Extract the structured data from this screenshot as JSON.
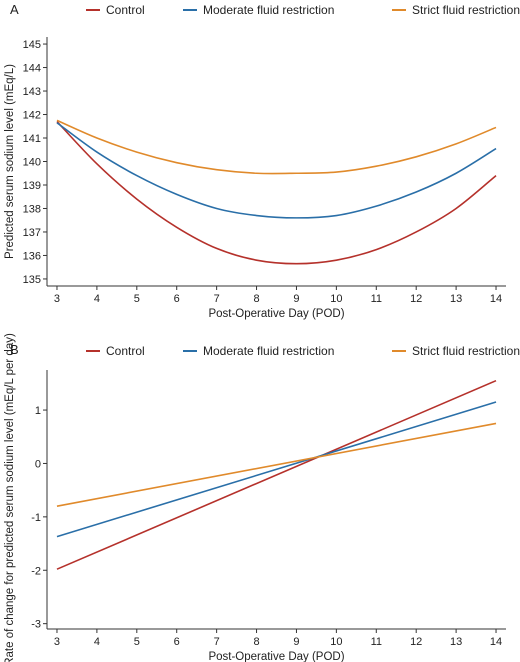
{
  "colors": {
    "control": "#b5312b",
    "moderate": "#2a6fa8",
    "strict": "#e08a2b",
    "axis": "#333333"
  },
  "chart_data": [
    {
      "type": "line",
      "panel_label": "A",
      "xlabel": "Post-Operative Day (POD)",
      "ylabel": "Predicted serum sodium level (mEq/L)",
      "xlim": [
        2.75,
        14.25
      ],
      "ylim": [
        134.7,
        145.3
      ],
      "xticks": [
        3,
        4,
        5,
        6,
        7,
        8,
        9,
        10,
        11,
        12,
        13,
        14
      ],
      "yticks": [
        135,
        136,
        137,
        138,
        139,
        140,
        141,
        142,
        143,
        144,
        145
      ],
      "legend_position": "top",
      "x": [
        3,
        4,
        5,
        6,
        7,
        8,
        9,
        10,
        11,
        12,
        13,
        14
      ],
      "series": [
        {
          "name": "Control",
          "color_key": "control",
          "values": [
            141.7,
            139.9,
            138.4,
            137.2,
            136.3,
            135.8,
            135.65,
            135.8,
            136.25,
            137.0,
            138.0,
            139.4
          ]
        },
        {
          "name": "Moderate fluid restriction",
          "color_key": "moderate",
          "values": [
            141.65,
            140.4,
            139.4,
            138.6,
            138.0,
            137.7,
            137.6,
            137.7,
            138.1,
            138.7,
            139.5,
            140.55
          ]
        },
        {
          "name": "Strict fluid restriction",
          "color_key": "strict",
          "values": [
            141.75,
            141.0,
            140.4,
            139.95,
            139.65,
            139.5,
            139.5,
            139.55,
            139.8,
            140.2,
            140.75,
            141.45
          ]
        }
      ]
    },
    {
      "type": "line",
      "panel_label": "B",
      "xlabel": "Post-Operative Day (POD)",
      "ylabel": "Rate of change for predicted serum sodium level (mEq/L per day)",
      "xlim": [
        2.75,
        14.25
      ],
      "ylim": [
        -3.1,
        1.75
      ],
      "xticks": [
        3,
        4,
        5,
        6,
        7,
        8,
        9,
        10,
        11,
        12,
        13,
        14
      ],
      "yticks": [
        -3,
        -2,
        -1,
        0,
        1
      ],
      "legend_position": "top",
      "x": [
        3,
        14
      ],
      "series": [
        {
          "name": "Control",
          "color_key": "control",
          "values": [
            -1.98,
            1.55
          ]
        },
        {
          "name": "Moderate fluid restriction",
          "color_key": "moderate",
          "values": [
            -1.37,
            1.15
          ]
        },
        {
          "name": "Strict fluid restriction",
          "color_key": "strict",
          "values": [
            -0.8,
            0.75
          ]
        }
      ]
    }
  ]
}
